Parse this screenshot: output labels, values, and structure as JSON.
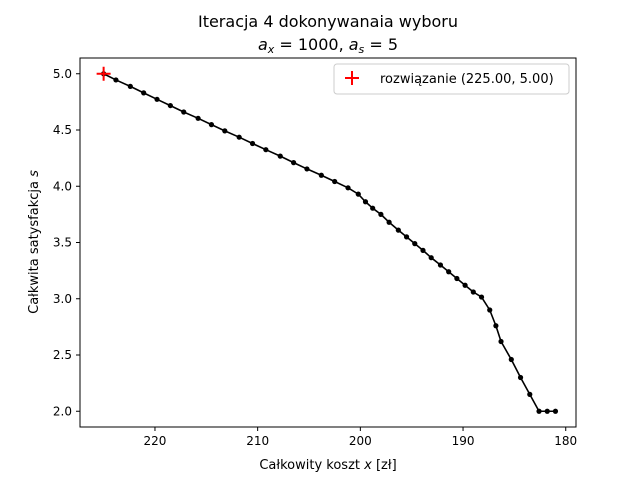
{
  "chart_data": {
    "type": "line",
    "title_line1": "Iteracja 4 dokonywanaia wyboru",
    "title_line2": {
      "parts": [
        {
          "t": "a",
          "style": "italic"
        },
        {
          "t": "x",
          "style": "italic-sub"
        },
        {
          "t": " = 1000, ",
          "style": "normal"
        },
        {
          "t": "a",
          "style": "italic"
        },
        {
          "t": "s",
          "style": "italic-sub"
        },
        {
          "t": " = 5",
          "style": "normal"
        }
      ]
    },
    "xlabel": {
      "pre": "Całkowity koszt ",
      "var": "x",
      "post": " [zł]"
    },
    "ylabel": {
      "pre": "Całkwita satysfakcja ",
      "var": "s",
      "post": ""
    },
    "x_inverted": true,
    "xlim": [
      227.3,
      179.0
    ],
    "ylim": [
      1.86,
      5.14
    ],
    "xticks": [
      220,
      210,
      200,
      190,
      180
    ],
    "yticks": [
      2.0,
      2.5,
      3.0,
      3.5,
      4.0,
      4.5,
      5.0
    ],
    "xtick_labels": [
      "220",
      "210",
      "200",
      "190",
      "180"
    ],
    "ytick_labels": [
      "2.0",
      "2.5",
      "3.0",
      "3.5",
      "4.0",
      "4.5",
      "5.0"
    ],
    "grid": false,
    "series": [
      {
        "color": "#000000",
        "marker": "dot",
        "x": [
          225.0,
          223.8,
          222.4,
          221.1,
          219.8,
          218.5,
          217.2,
          215.8,
          214.5,
          213.2,
          211.8,
          210.5,
          209.2,
          207.8,
          206.5,
          205.2,
          203.8,
          202.5,
          201.2,
          200.2,
          199.5,
          198.8,
          198.0,
          197.2,
          196.3,
          195.5,
          194.7,
          193.9,
          193.1,
          192.2,
          191.4,
          190.6,
          189.8,
          189.0,
          188.2,
          187.4,
          186.8,
          186.3,
          185.3,
          184.4,
          183.5,
          182.6,
          181.8,
          181.0
        ],
        "y": [
          5.0,
          4.945,
          4.888,
          4.83,
          4.773,
          4.717,
          4.66,
          4.604,
          4.548,
          4.492,
          4.436,
          4.38,
          4.325,
          4.268,
          4.21,
          4.154,
          4.098,
          4.042,
          3.986,
          3.93,
          3.862,
          3.805,
          3.75,
          3.68,
          3.61,
          3.55,
          3.49,
          3.43,
          3.365,
          3.3,
          3.24,
          3.18,
          3.12,
          3.06,
          3.015,
          2.9,
          2.76,
          2.62,
          2.46,
          2.3,
          2.15,
          2.0,
          2.0,
          2.0
        ]
      }
    ],
    "solution": {
      "x": 225.0,
      "y": 5.0,
      "color": "#ff0000",
      "marker": "plus",
      "legend_label": "rozwiązanie (225.00, 5.00)"
    },
    "legend_position": "upper-right"
  }
}
